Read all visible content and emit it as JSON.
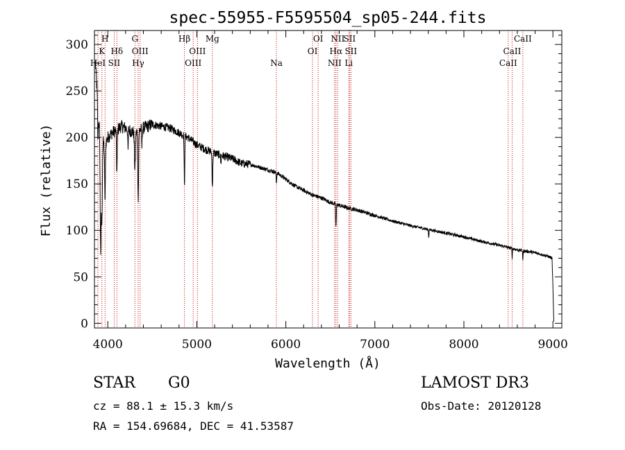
{
  "chart_data": {
    "type": "line",
    "title": "spec-55955-F5595504_sp05-244.fits",
    "xlabel": "Wavelength (Å)",
    "ylabel": "Flux (relative)",
    "xlim": [
      3850,
      9100
    ],
    "ylim": [
      -5,
      315
    ],
    "xticks": [
      {
        "value": 4000,
        "label": "4000"
      },
      {
        "value": 5000,
        "label": "5000"
      },
      {
        "value": 6000,
        "label": "6000"
      },
      {
        "value": 7000,
        "label": "7000"
      },
      {
        "value": 8000,
        "label": "8000"
      },
      {
        "value": 9000,
        "label": "9000"
      }
    ],
    "yticks": [
      {
        "value": 0,
        "label": "0"
      },
      {
        "value": 50,
        "label": "50"
      },
      {
        "value": 100,
        "label": "100"
      },
      {
        "value": 150,
        "label": "150"
      },
      {
        "value": 200,
        "label": "200"
      },
      {
        "value": 250,
        "label": "250"
      },
      {
        "value": 300,
        "label": "300"
      }
    ],
    "line_color": "#000000",
    "marker_color": "#cc0000",
    "spectral_lines": [
      {
        "label": "HeI",
        "wavelength": 3889,
        "tier": 2
      },
      {
        "label": "K",
        "wavelength": 3934,
        "tier": 1
      },
      {
        "label": "H",
        "wavelength": 3969,
        "tier": 0
      },
      {
        "label": "SII",
        "wavelength": 4072,
        "tier": 2
      },
      {
        "label": "Hδ",
        "wavelength": 4102,
        "tier": 1
      },
      {
        "label": "G",
        "wavelength": 4305,
        "tier": 0
      },
      {
        "label": "Hγ",
        "wavelength": 4341,
        "tier": 2
      },
      {
        "label": "OIII",
        "wavelength": 4363,
        "tier": 1
      },
      {
        "label": "Hβ",
        "wavelength": 4861,
        "tier": 0
      },
      {
        "label": "OIII",
        "wavelength": 4959,
        "tier": 2
      },
      {
        "label": "OIII",
        "wavelength": 5007,
        "tier": 1
      },
      {
        "label": "Mg",
        "wavelength": 5175,
        "tier": 0
      },
      {
        "label": "Na",
        "wavelength": 5894,
        "tier": 2
      },
      {
        "label": "OI",
        "wavelength": 6300,
        "tier": 1
      },
      {
        "label": "OI",
        "wavelength": 6363,
        "tier": 0
      },
      {
        "label": "NII",
        "wavelength": 6548,
        "tier": 2
      },
      {
        "label": "Hα",
        "wavelength": 6563,
        "tier": 1
      },
      {
        "label": "NII",
        "wavelength": 6583,
        "tier": 0
      },
      {
        "label": "Li",
        "wavelength": 6707,
        "tier": 2
      },
      {
        "label": "SII",
        "wavelength": 6716,
        "tier": 0
      },
      {
        "label": "SII",
        "wavelength": 6731,
        "tier": 1
      },
      {
        "label": "CaII",
        "wavelength": 8498,
        "tier": 2
      },
      {
        "label": "CaII",
        "wavelength": 8542,
        "tier": 1
      },
      {
        "label": "CaII",
        "wavelength": 8662,
        "tier": 0
      }
    ],
    "continuum": [
      [
        3860,
        280
      ],
      [
        3880,
        250
      ],
      [
        3900,
        215
      ],
      [
        3930,
        205
      ],
      [
        3960,
        190
      ],
      [
        4000,
        200
      ],
      [
        4050,
        205
      ],
      [
        4100,
        208
      ],
      [
        4150,
        212
      ],
      [
        4200,
        210
      ],
      [
        4300,
        205
      ],
      [
        4400,
        210
      ],
      [
        4500,
        214
      ],
      [
        4600,
        212
      ],
      [
        4700,
        210
      ],
      [
        4800,
        205
      ],
      [
        4900,
        200
      ],
      [
        5000,
        192
      ],
      [
        5100,
        187
      ],
      [
        5200,
        183
      ],
      [
        5300,
        180
      ],
      [
        5400,
        177
      ],
      [
        5500,
        172
      ],
      [
        5600,
        171
      ],
      [
        5700,
        168
      ],
      [
        5800,
        165
      ],
      [
        5900,
        162
      ],
      [
        6000,
        155
      ],
      [
        6100,
        148
      ],
      [
        6200,
        143
      ],
      [
        6300,
        138
      ],
      [
        6400,
        135
      ],
      [
        6500,
        130
      ],
      [
        6600,
        127
      ],
      [
        6700,
        124
      ],
      [
        6800,
        122
      ],
      [
        6900,
        119
      ],
      [
        7000,
        116
      ],
      [
        7200,
        110
      ],
      [
        7400,
        105
      ],
      [
        7600,
        101
      ],
      [
        7800,
        97
      ],
      [
        8000,
        93
      ],
      [
        8200,
        88
      ],
      [
        8400,
        84
      ],
      [
        8600,
        79
      ],
      [
        8800,
        76
      ],
      [
        8950,
        72
      ],
      [
        8990,
        70
      ],
      [
        9000,
        40
      ],
      [
        9010,
        2
      ]
    ],
    "absorption_features": [
      {
        "wavelength": 3889,
        "depth": 40,
        "width": 5
      },
      {
        "wavelength": 3920,
        "depth": 130,
        "width": 8
      },
      {
        "wavelength": 3934,
        "depth": 90,
        "width": 7
      },
      {
        "wavelength": 3969,
        "depth": 60,
        "width": 6
      },
      {
        "wavelength": 4102,
        "depth": 45,
        "width": 6
      },
      {
        "wavelength": 4227,
        "depth": 25,
        "width": 4
      },
      {
        "wavelength": 4305,
        "depth": 40,
        "width": 8
      },
      {
        "wavelength": 4341,
        "depth": 75,
        "width": 6
      },
      {
        "wavelength": 4383,
        "depth": 20,
        "width": 4
      },
      {
        "wavelength": 4861,
        "depth": 55,
        "width": 5
      },
      {
        "wavelength": 5175,
        "depth": 35,
        "width": 6
      },
      {
        "wavelength": 5270,
        "depth": 10,
        "width": 4
      },
      {
        "wavelength": 5894,
        "depth": 12,
        "width": 4
      },
      {
        "wavelength": 6563,
        "depth": 25,
        "width": 5
      },
      {
        "wavelength": 7605,
        "depth": 8,
        "width": 4
      },
      {
        "wavelength": 8542,
        "depth": 10,
        "width": 3
      },
      {
        "wavelength": 8662,
        "depth": 12,
        "width": 3
      }
    ]
  },
  "footer": {
    "object_class": "STAR",
    "subclass": "G0",
    "cz": "cz = 88.1 ± 15.3 km/s",
    "radec": "RA = 154.69684, DEC =  41.53587",
    "survey": "LAMOST DR3",
    "obs_date": "Obs-Date: 20120128"
  }
}
